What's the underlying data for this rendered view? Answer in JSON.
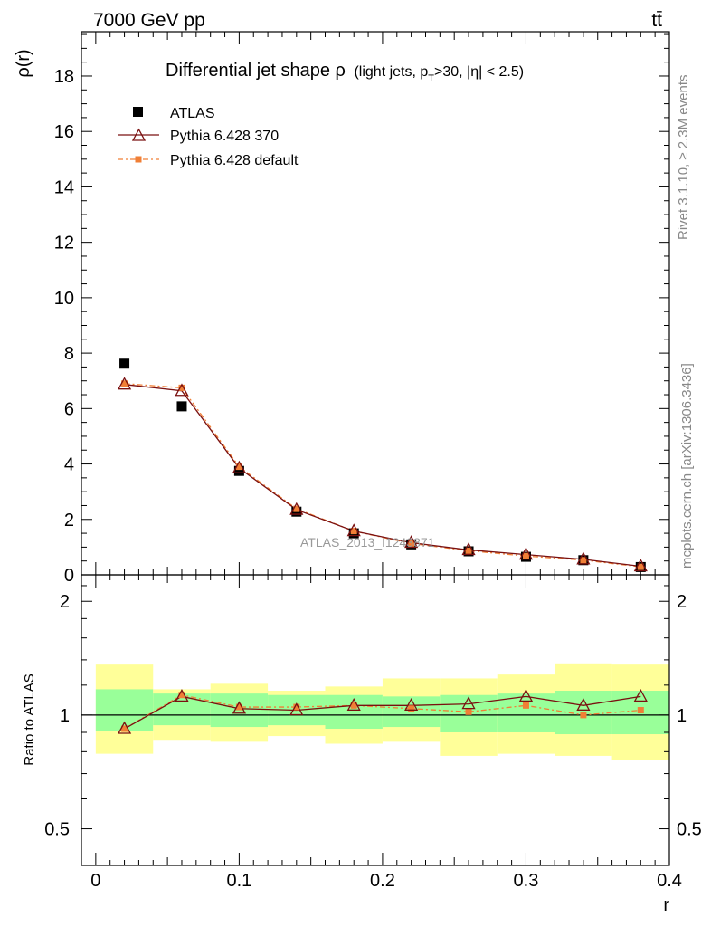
{
  "header": {
    "left": "7000 GeV pp",
    "right": "tt̄"
  },
  "side": {
    "rivet": "Rivet 3.1.10, ≥ 2.3M events",
    "mcplots": "mcplots.cern.ch [arXiv:1306.3436]"
  },
  "title": {
    "main": "Differential jet shape ρ",
    "sub": "(light jets, p",
    "sub_t": "T",
    "sub_rest": ">30, |η| < 2.5)"
  },
  "watermark": "ATLAS_2013_I1243871",
  "colors": {
    "atlas": "#000000",
    "p370": "#7a1010",
    "pdefault": "#f07f36",
    "band_inner": "#99ff99",
    "band_outer": "#ffff99"
  },
  "chart_data": [
    {
      "type": "line",
      "panel": "main",
      "ylabel": "ρ(r)",
      "xlim": [
        -0.01,
        0.4
      ],
      "ylim": [
        0,
        19.6
      ],
      "yticks": [
        0,
        2,
        4,
        6,
        8,
        10,
        12,
        14,
        16,
        18
      ],
      "ytick_labels": [
        "0",
        "2",
        "4",
        "6",
        "8",
        "10",
        "12",
        "14",
        "16",
        "18"
      ],
      "x": [
        0.02,
        0.06,
        0.1,
        0.14,
        0.18,
        0.22,
        0.26,
        0.3,
        0.34,
        0.38
      ],
      "series": [
        {
          "name": "ATLAS",
          "marker": "square",
          "values": [
            7.62,
            6.08,
            3.75,
            2.28,
            1.5,
            1.1,
            0.85,
            0.65,
            0.53,
            0.28
          ]
        },
        {
          "name": "Pythia 6.428 370",
          "marker": "triangle",
          "values": [
            6.87,
            6.64,
            3.85,
            2.35,
            1.58,
            1.16,
            0.9,
            0.73,
            0.56,
            0.31
          ]
        },
        {
          "name": "Pythia 6.428 default",
          "marker": "small-square",
          "values": [
            6.9,
            6.75,
            3.9,
            2.38,
            1.58,
            1.13,
            0.87,
            0.68,
            0.53,
            0.29
          ]
        }
      ],
      "legend_position": "top-left"
    },
    {
      "type": "line",
      "panel": "ratio",
      "ylabel": "Ratio to ATLAS",
      "xlabel": "r",
      "scale": "log",
      "ylim": [
        0.4,
        2.35
      ],
      "yticks": [
        0.5,
        1,
        2
      ],
      "ytick_labels": [
        "0.5",
        "1",
        "2"
      ],
      "xticks": [
        0,
        0.1,
        0.2,
        0.3,
        0.4
      ],
      "xtick_labels": [
        "0",
        "0.1",
        "0.2",
        "0.3",
        "0.4"
      ],
      "x": [
        0.02,
        0.06,
        0.1,
        0.14,
        0.18,
        0.22,
        0.26,
        0.3,
        0.34,
        0.38
      ],
      "bin_edges": [
        0,
        0.04,
        0.08,
        0.12,
        0.16,
        0.2,
        0.24,
        0.28,
        0.32,
        0.36,
        0.4
      ],
      "band_inner": {
        "low": [
          0.91,
          0.94,
          0.93,
          0.94,
          0.92,
          0.93,
          0.9,
          0.9,
          0.89,
          0.89
        ],
        "high": [
          1.17,
          1.14,
          1.14,
          1.13,
          1.13,
          1.12,
          1.13,
          1.14,
          1.16,
          1.16
        ]
      },
      "band_outer": {
        "low": [
          0.79,
          0.86,
          0.85,
          0.88,
          0.84,
          0.85,
          0.78,
          0.79,
          0.78,
          0.76
        ],
        "high": [
          1.36,
          1.17,
          1.21,
          1.16,
          1.19,
          1.25,
          1.25,
          1.28,
          1.37,
          1.36
        ]
      },
      "series": [
        {
          "name": "Pythia 6.428 370",
          "values": [
            0.92,
            1.12,
            1.04,
            1.03,
            1.06,
            1.06,
            1.07,
            1.12,
            1.06,
            1.12
          ]
        },
        {
          "name": "Pythia 6.428 default",
          "values": [
            0.92,
            1.13,
            1.05,
            1.05,
            1.06,
            1.04,
            1.02,
            1.06,
            1.0,
            1.03
          ]
        }
      ]
    }
  ]
}
